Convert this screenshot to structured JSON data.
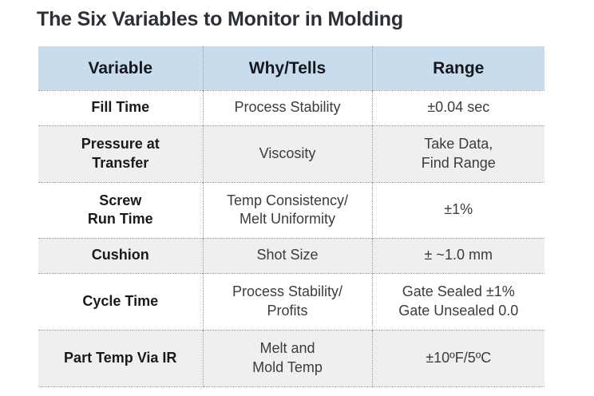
{
  "title": "The Six Variables to Monitor in Molding",
  "colors": {
    "header_bg": "#c9dcee",
    "row_alt_bg": "#efefef",
    "dotted_border": "#9a9a9a",
    "title_text": "#2d3136",
    "header_text": "#14181c",
    "cell_text": "#3c3c3c",
    "variable_text": "#1a1a1a"
  },
  "table": {
    "headers": [
      "Variable",
      "Why/Tells",
      "Range"
    ],
    "rows": [
      {
        "variable": [
          "Fill Time"
        ],
        "why": [
          "Process Stability"
        ],
        "range": [
          "±0.04 sec"
        ]
      },
      {
        "variable": [
          "Pressure at",
          "Transfer"
        ],
        "why": [
          "Viscosity"
        ],
        "range": [
          "Take Data,",
          "Find Range"
        ]
      },
      {
        "variable": [
          "Screw",
          "Run Time"
        ],
        "why": [
          "Temp Consistency/",
          "Melt Uniformity"
        ],
        "range": [
          "±1%"
        ]
      },
      {
        "variable": [
          "Cushion"
        ],
        "why": [
          "Shot Size"
        ],
        "range": [
          "± ~1.0 mm"
        ]
      },
      {
        "variable": [
          "Cycle Time"
        ],
        "why": [
          "Process Stability/",
          "Profits"
        ],
        "range": [
          "Gate Sealed ±1%",
          "Gate Unsealed 0.0"
        ]
      },
      {
        "variable": [
          "Part Temp Via IR"
        ],
        "why": [
          "Melt and",
          "Mold Temp"
        ],
        "range": [
          "±10ºF/5ºC"
        ]
      }
    ]
  },
  "chart_data": {
    "type": "table",
    "title": "The Six Variables to Monitor in Molding",
    "columns": [
      "Variable",
      "Why/Tells",
      "Range"
    ],
    "rows": [
      [
        "Fill Time",
        "Process Stability",
        "±0.04 sec"
      ],
      [
        "Pressure at Transfer",
        "Viscosity",
        "Take Data, Find Range"
      ],
      [
        "Screw Run Time",
        "Temp Consistency/ Melt Uniformity",
        "±1%"
      ],
      [
        "Cushion",
        "Shot Size",
        "± ~1.0 mm"
      ],
      [
        "Cycle Time",
        "Process Stability/ Profits",
        "Gate Sealed ±1% Gate Unsealed 0.0"
      ],
      [
        "Part Temp Via IR",
        "Melt and Mold Temp",
        "±10ºF/5ºC"
      ]
    ],
    "legend": "none",
    "grid": "dotted row/column separators",
    "header_style": "light blue band, bold text",
    "row_striping": "white / light gray alternating"
  }
}
